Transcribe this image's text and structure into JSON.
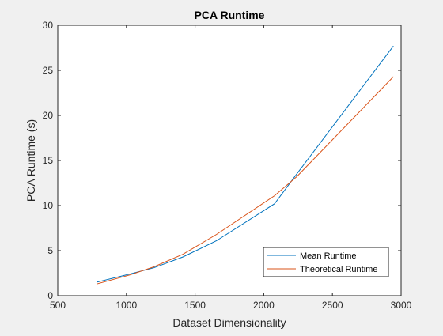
{
  "chart_data": {
    "type": "line",
    "title": "PCA Runtime",
    "xlabel": "Dataset Dimensionality",
    "ylabel": "PCA Runtime (s)",
    "xlim": [
      500,
      3000
    ],
    "ylim": [
      0,
      30
    ],
    "xticks": [
      500,
      1000,
      1500,
      2000,
      2500,
      3000
    ],
    "yticks": [
      0,
      5,
      10,
      15,
      20,
      25,
      30
    ],
    "grid": false,
    "legend_position": "bottom-right",
    "series": [
      {
        "name": "Mean Runtime",
        "color": "#0072bd",
        "x": [
          784,
          1024,
          1200,
          1412,
          1656,
          2079,
          2240,
          2944
        ],
        "y": [
          1.5,
          2.4,
          3.1,
          4.3,
          6.1,
          10.2,
          13.5,
          27.7
        ]
      },
      {
        "name": "Theoretical Runtime",
        "color": "#d95319",
        "x": [
          784,
          1024,
          1200,
          1412,
          1656,
          2079,
          2240,
          2944
        ],
        "y": [
          1.3,
          2.3,
          3.2,
          4.6,
          6.8,
          11.1,
          13.2,
          24.3
        ]
      }
    ]
  }
}
